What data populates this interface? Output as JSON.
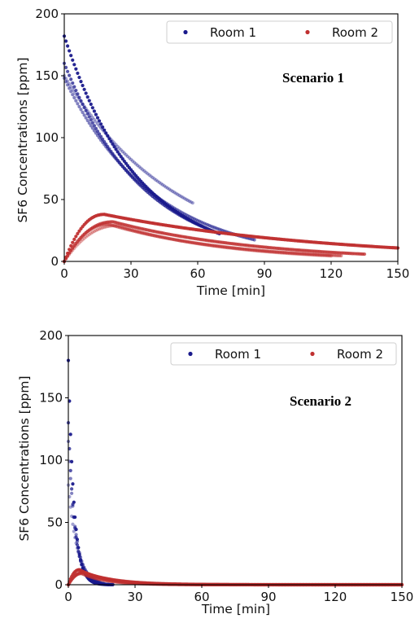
{
  "chart_data": [
    {
      "type": "scatter",
      "annotation": "Scenario 1",
      "xlabel": "Time [min]",
      "ylabel": "SF6 Concentrations [ppm]",
      "xlim": [
        0,
        150
      ],
      "ylim": [
        0,
        200
      ],
      "xticks": [
        0,
        30,
        60,
        90,
        120,
        150
      ],
      "yticks": [
        0,
        50,
        100,
        150,
        200
      ],
      "legend_position": "top-right",
      "grid": false,
      "series": [
        {
          "name": "Room 1",
          "color": "#1a1a8c",
          "runs": [
            {
              "c0": 182,
              "k": 0.03,
              "tmax": 70,
              "baseline": 0
            },
            {
              "c0": 160,
              "k": 0.028,
              "tmax": 62,
              "baseline": 0
            },
            {
              "c0": 148,
              "k": 0.025,
              "tmax": 86,
              "baseline": 0
            },
            {
              "c0": 150,
              "k": 0.02,
              "tmax": 58,
              "baseline": 0
            }
          ]
        },
        {
          "name": "Room 2",
          "color": "#c03030",
          "runs": [
            {
              "peak": 38,
              "tpeak": 18,
              "decay": 0.0095,
              "tmax": 150
            },
            {
              "peak": 32,
              "tpeak": 22,
              "decay": 0.015,
              "tmax": 135
            },
            {
              "peak": 30,
              "tpeak": 20,
              "decay": 0.018,
              "tmax": 125
            },
            {
              "peak": 29,
              "tpeak": 24,
              "decay": 0.0195,
              "tmax": 120
            }
          ]
        }
      ]
    },
    {
      "type": "scatter",
      "annotation": "Scenario 2",
      "xlabel": "Time [min]",
      "ylabel": "SF6 Concentrations [ppm]",
      "xlim": [
        0,
        150
      ],
      "ylim": [
        0,
        200
      ],
      "xticks": [
        0,
        30,
        60,
        90,
        120,
        150
      ],
      "yticks": [
        0,
        50,
        100,
        150,
        200
      ],
      "legend_position": "top-right",
      "grid": false,
      "series": [
        {
          "name": "Room 1",
          "color": "#1a1a8c",
          "runs": [
            {
              "c0": 180,
              "k": 0.4,
              "tmax": 20,
              "baseline": 0
            },
            {
              "c0": 130,
              "k": 0.35,
              "tmax": 18,
              "baseline": 0
            },
            {
              "c0": 115,
              "k": 0.3,
              "tmax": 16,
              "baseline": 0
            },
            {
              "c0": 80,
              "k": 0.25,
              "tmax": 14,
              "baseline": 0
            }
          ]
        },
        {
          "name": "Room 2",
          "color": "#c03030",
          "runs": [
            {
              "peak": 12,
              "tpeak": 5,
              "decay": 0.08,
              "tmax": 150
            },
            {
              "peak": 10,
              "tpeak": 7,
              "decay": 0.07,
              "tmax": 150
            },
            {
              "peak": 9,
              "tpeak": 6,
              "decay": 0.09,
              "tmax": 150
            }
          ]
        }
      ]
    }
  ]
}
